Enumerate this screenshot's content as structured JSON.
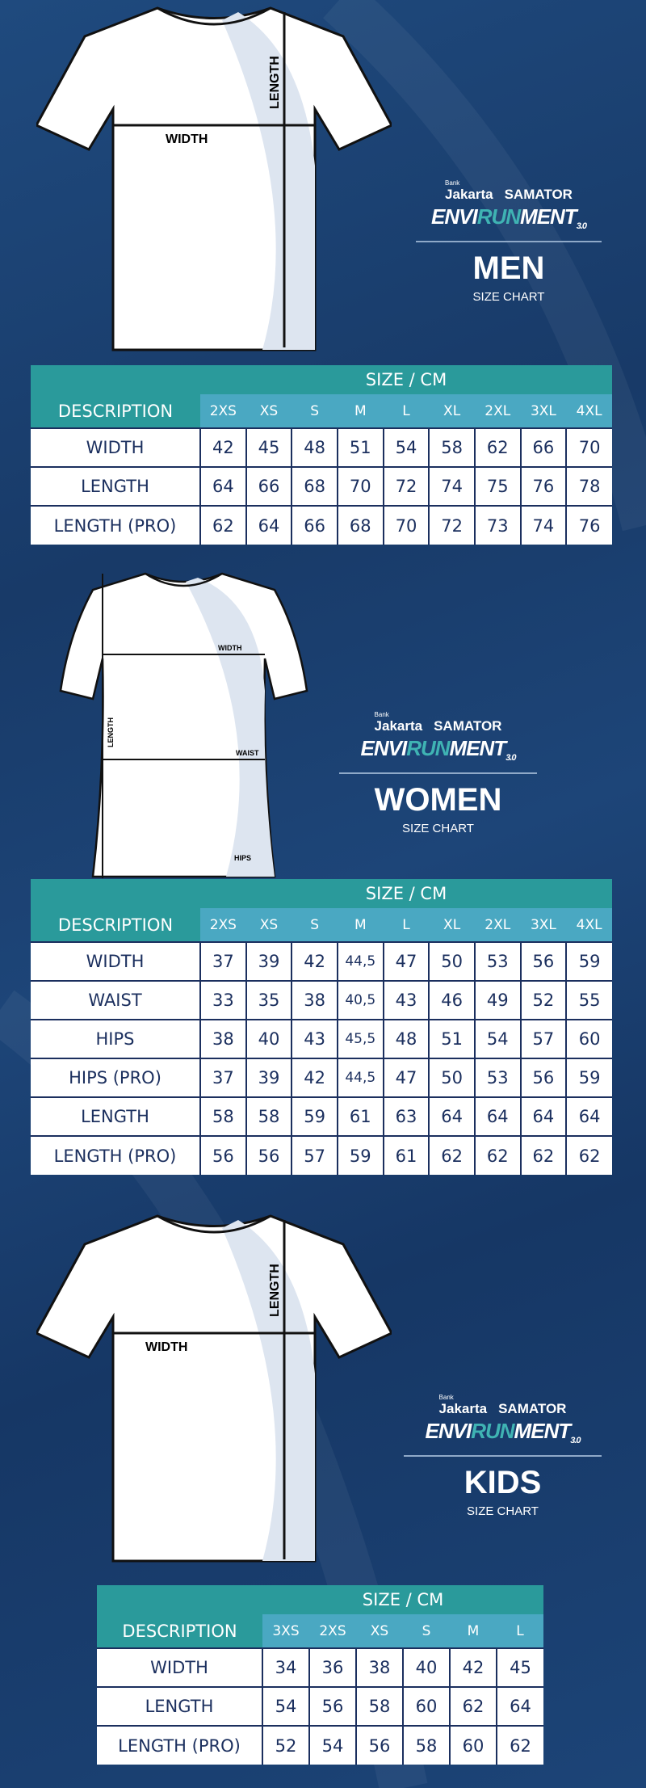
{
  "brand": {
    "bank_small": "Bank",
    "bank": "Jakarta",
    "sponsor": "SAMATOR",
    "event_a": "ENVI",
    "event_b": "RUN",
    "event_c": "MENT",
    "event_ver": "3.0"
  },
  "colors": {
    "background": "#1a3f70",
    "header_teal": "#2a9a9b",
    "header_blue": "#4aa8c2",
    "text_navy": "#1b2f5e"
  },
  "sections": {
    "men": {
      "title": "MEN",
      "subtitle": "SIZE CHART",
      "diagram_labels": {
        "width": "WIDTH",
        "length": "LENGTH"
      },
      "table": {
        "size_header": "SIZE / CM",
        "desc_header": "DESCRIPTION",
        "sizes": [
          "2XS",
          "XS",
          "S",
          "M",
          "L",
          "XL",
          "2XL",
          "3XL",
          "4XL"
        ],
        "rows": [
          {
            "label": "WIDTH",
            "values": [
              "42",
              "45",
              "48",
              "51",
              "54",
              "58",
              "62",
              "66",
              "70"
            ]
          },
          {
            "label": "LENGTH",
            "values": [
              "64",
              "66",
              "68",
              "70",
              "72",
              "74",
              "75",
              "76",
              "78"
            ]
          },
          {
            "label": "LENGTH (PRO)",
            "values": [
              "62",
              "64",
              "66",
              "68",
              "70",
              "72",
              "73",
              "74",
              "76"
            ]
          }
        ]
      }
    },
    "women": {
      "title": "WOMEN",
      "subtitle": "SIZE CHART",
      "diagram_labels": {
        "width": "WIDTH",
        "length": "LENGTH",
        "waist": "WAIST",
        "hips": "HIPS"
      },
      "table": {
        "size_header": "SIZE / CM",
        "desc_header": "DESCRIPTION",
        "sizes": [
          "2XS",
          "XS",
          "S",
          "M",
          "L",
          "XL",
          "2XL",
          "3XL",
          "4XL"
        ],
        "rows": [
          {
            "label": "WIDTH",
            "values": [
              "37",
              "39",
              "42",
              "44,5",
              "47",
              "50",
              "53",
              "56",
              "59"
            ]
          },
          {
            "label": "WAIST",
            "values": [
              "33",
              "35",
              "38",
              "40,5",
              "43",
              "46",
              "49",
              "52",
              "55"
            ]
          },
          {
            "label": "HIPS",
            "values": [
              "38",
              "40",
              "43",
              "45,5",
              "48",
              "51",
              "54",
              "57",
              "60"
            ]
          },
          {
            "label": "HIPS (PRO)",
            "values": [
              "37",
              "39",
              "42",
              "44,5",
              "47",
              "50",
              "53",
              "56",
              "59"
            ]
          },
          {
            "label": "LENGTH",
            "values": [
              "58",
              "58",
              "59",
              "61",
              "63",
              "64",
              "64",
              "64",
              "64"
            ]
          },
          {
            "label": "LENGTH (PRO)",
            "values": [
              "56",
              "56",
              "57",
              "59",
              "61",
              "62",
              "62",
              "62",
              "62"
            ]
          }
        ]
      }
    },
    "kids": {
      "title": "KIDS",
      "subtitle": "SIZE CHART",
      "diagram_labels": {
        "width": "WIDTH",
        "length": "LENGTH"
      },
      "table": {
        "size_header": "SIZE / CM",
        "desc_header": "DESCRIPTION",
        "sizes": [
          "3XS",
          "2XS",
          "XS",
          "S",
          "M",
          "L"
        ],
        "rows": [
          {
            "label": "WIDTH",
            "values": [
              "34",
              "36",
              "38",
              "40",
              "42",
              "45"
            ]
          },
          {
            "label": "LENGTH",
            "values": [
              "54",
              "56",
              "58",
              "60",
              "62",
              "64"
            ]
          },
          {
            "label": "LENGTH (PRO)",
            "values": [
              "52",
              "54",
              "56",
              "58",
              "60",
              "62"
            ]
          }
        ]
      }
    }
  }
}
